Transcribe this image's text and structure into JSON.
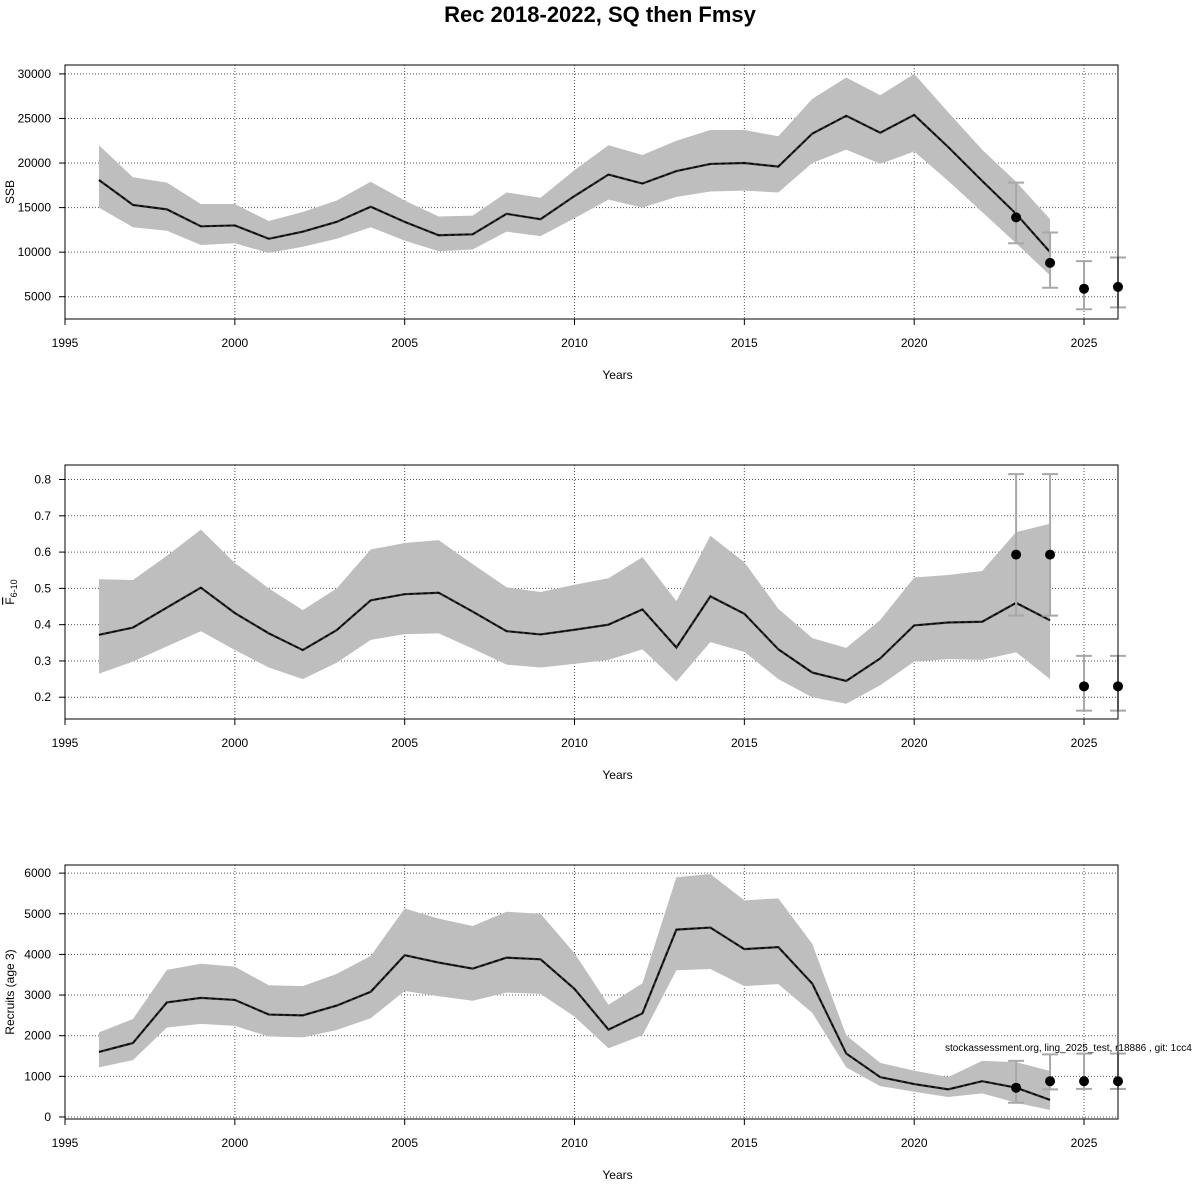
{
  "title": "Rec 2018-2022, SQ then Fmsy",
  "watermark": "stockassessment.org, ling_2025_test, r18886 , git: 1cc4",
  "colors": {
    "band": "#bebebe",
    "line": "#000000",
    "whisker": "#a8a8a8",
    "grid": "#555555"
  },
  "chart_data": [
    {
      "type": "line",
      "ylabel": "SSB",
      "xlabel": "Years",
      "xlim": [
        1995,
        2026
      ],
      "ylim": [
        2500,
        31000
      ],
      "xticks": [
        1995,
        2000,
        2005,
        2010,
        2015,
        2020,
        2025
      ],
      "yticks": [
        5000,
        10000,
        15000,
        20000,
        25000,
        30000
      ],
      "grid": true,
      "x": [
        1996,
        1997,
        1998,
        1999,
        2000,
        2001,
        2002,
        2003,
        2004,
        2005,
        2006,
        2007,
        2008,
        2009,
        2010,
        2011,
        2012,
        2013,
        2014,
        2015,
        2016,
        2017,
        2018,
        2019,
        2020,
        2021,
        2022,
        2023,
        2024
      ],
      "y": [
        18100,
        15300,
        14800,
        12900,
        13000,
        11500,
        12300,
        13400,
        15100,
        13400,
        11900,
        12000,
        14300,
        13700,
        16300,
        18700,
        17700,
        19100,
        19900,
        20000,
        19600,
        23300,
        25300,
        23400,
        25400,
        21800,
        18000,
        14300,
        10000
      ],
      "lower": [
        15000,
        12800,
        12400,
        10800,
        11000,
        9900,
        10600,
        11500,
        12800,
        11300,
        10100,
        10300,
        12300,
        11800,
        13800,
        15900,
        15000,
        16200,
        16800,
        16900,
        16700,
        20000,
        21500,
        19900,
        21300,
        18000,
        14500,
        11000,
        7400
      ],
      "upper": [
        22000,
        18400,
        17800,
        15400,
        15400,
        13500,
        14500,
        15800,
        17900,
        15800,
        14000,
        14100,
        16700,
        16100,
        19200,
        22000,
        20900,
        22500,
        23700,
        23700,
        23000,
        27200,
        29600,
        27600,
        30000,
        25700,
        21500,
        17900,
        13700
      ],
      "forecast": [
        {
          "x": 2023,
          "y": 13900,
          "lower": 11000,
          "upper": 17800
        },
        {
          "x": 2024,
          "y": 8800,
          "lower": 6000,
          "upper": 12200
        },
        {
          "x": 2025,
          "y": 5900,
          "lower": 3600,
          "upper": 9000
        },
        {
          "x": 2026,
          "y": 6100,
          "lower": 3800,
          "upper": 9400
        }
      ]
    },
    {
      "type": "line",
      "ylabel": "F̄6-10",
      "ylabel_main": "F",
      "ylabel_sub": "6-10",
      "xlabel": "Years",
      "xlim": [
        1995,
        2026
      ],
      "ylim": [
        0.14,
        0.84
      ],
      "xticks": [
        1995,
        2000,
        2005,
        2010,
        2015,
        2020,
        2025
      ],
      "yticks": [
        0.2,
        0.3,
        0.4,
        0.5,
        0.6,
        0.7,
        0.8
      ],
      "grid": true,
      "x": [
        1996,
        1997,
        1998,
        1999,
        2000,
        2001,
        2002,
        2003,
        2004,
        2005,
        2006,
        2007,
        2008,
        2009,
        2010,
        2011,
        2012,
        2013,
        2014,
        2015,
        2016,
        2017,
        2018,
        2019,
        2020,
        2021,
        2022,
        2023,
        2024
      ],
      "y": [
        0.372,
        0.392,
        0.447,
        0.502,
        0.432,
        0.376,
        0.33,
        0.385,
        0.467,
        0.484,
        0.488,
        0.436,
        0.382,
        0.373,
        0.386,
        0.4,
        0.442,
        0.337,
        0.478,
        0.43,
        0.332,
        0.268,
        0.245,
        0.307,
        0.398,
        0.406,
        0.408,
        0.46,
        0.412
      ],
      "lower": [
        0.265,
        0.298,
        0.34,
        0.382,
        0.33,
        0.282,
        0.25,
        0.295,
        0.358,
        0.374,
        0.376,
        0.334,
        0.29,
        0.282,
        0.292,
        0.303,
        0.332,
        0.243,
        0.352,
        0.325,
        0.25,
        0.2,
        0.182,
        0.233,
        0.298,
        0.305,
        0.303,
        0.324,
        0.25
      ],
      "upper": [
        0.525,
        0.523,
        0.59,
        0.662,
        0.57,
        0.5,
        0.44,
        0.5,
        0.607,
        0.625,
        0.633,
        0.567,
        0.503,
        0.49,
        0.51,
        0.528,
        0.586,
        0.465,
        0.645,
        0.572,
        0.444,
        0.363,
        0.336,
        0.413,
        0.53,
        0.537,
        0.548,
        0.655,
        0.678
      ],
      "forecast": [
        {
          "x": 2023,
          "y": 0.593,
          "lower": 0.425,
          "upper": 0.815
        },
        {
          "x": 2024,
          "y": 0.593,
          "lower": 0.425,
          "upper": 0.815
        },
        {
          "x": 2025,
          "y": 0.23,
          "lower": 0.163,
          "upper": 0.314
        },
        {
          "x": 2026,
          "y": 0.23,
          "lower": 0.163,
          "upper": 0.314
        }
      ]
    },
    {
      "type": "line",
      "ylabel": "Recruits (age 3)",
      "xlabel": "Years",
      "xlim": [
        1995,
        2026
      ],
      "ylim": [
        -50,
        6200
      ],
      "xticks": [
        1995,
        2000,
        2005,
        2010,
        2015,
        2020,
        2025
      ],
      "yticks": [
        0,
        1000,
        2000,
        3000,
        4000,
        5000,
        6000
      ],
      "grid": true,
      "x": [
        1996,
        1997,
        1998,
        1999,
        2000,
        2001,
        2002,
        2003,
        2004,
        2005,
        2006,
        2007,
        2008,
        2009,
        2010,
        2011,
        2012,
        2013,
        2014,
        2015,
        2016,
        2017,
        2018,
        2019,
        2020,
        2021,
        2022,
        2023,
        2024
      ],
      "y": [
        1600,
        1820,
        2820,
        2930,
        2880,
        2520,
        2500,
        2740,
        3080,
        3980,
        3800,
        3650,
        3920,
        3880,
        3150,
        2150,
        2550,
        4610,
        4660,
        4130,
        4180,
        3280,
        1560,
        980,
        810,
        680,
        880,
        720,
        420
      ],
      "lower": [
        1220,
        1400,
        2200,
        2290,
        2240,
        1980,
        1960,
        2140,
        2430,
        3100,
        2970,
        2860,
        3060,
        3030,
        2470,
        1690,
        2010,
        3610,
        3640,
        3220,
        3270,
        2560,
        1220,
        760,
        620,
        490,
        580,
        350,
        170
      ],
      "upper": [
        2080,
        2410,
        3620,
        3770,
        3700,
        3240,
        3220,
        3520,
        3960,
        5130,
        4880,
        4700,
        5050,
        5000,
        4030,
        2760,
        3290,
        5900,
        5980,
        5330,
        5380,
        4260,
        2010,
        1330,
        1140,
        980,
        1380,
        1350,
        1130
      ],
      "forecast": [
        {
          "x": 2023,
          "y": 720,
          "lower": 350,
          "upper": 1380
        },
        {
          "x": 2024,
          "y": 880,
          "lower": 680,
          "upper": 1540
        },
        {
          "x": 2025,
          "y": 880,
          "lower": 690,
          "upper": 1560
        },
        {
          "x": 2026,
          "y": 880,
          "lower": 690,
          "upper": 1560
        }
      ]
    }
  ]
}
